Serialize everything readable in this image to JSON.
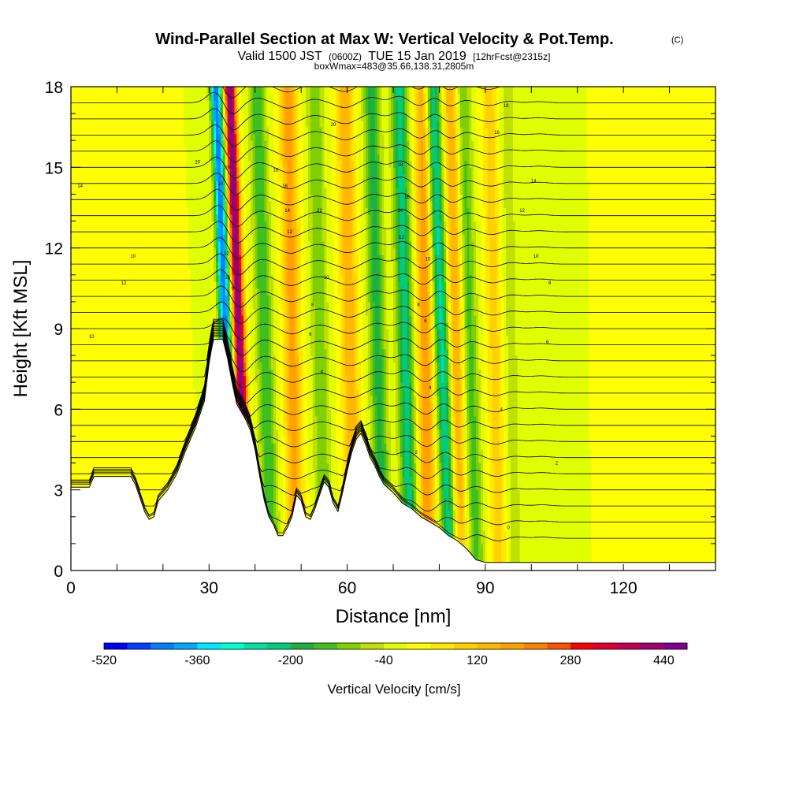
{
  "header": {
    "title": "Wind-Parallel Section at Max W: Vertical Velocity & Pot.Temp.",
    "title_unit": "(C)",
    "valid_prefix": "Valid 1500 JST",
    "valid_utc": "(0600Z)",
    "valid_date": "TUE 15 Jan 2019",
    "forecast": "[12hrFcst@2315z]",
    "box_info": "boxWmax=483@35.66,138.31,2805m"
  },
  "chart_data": {
    "type": "heatmap",
    "title": "Wind-Parallel Section at Max W: Vertical Velocity & Pot.Temp.",
    "xlabel": "Distance [nm]",
    "ylabel": "Height [Kft MSL]",
    "xlim": [
      0,
      140
    ],
    "ylim": [
      0,
      18
    ],
    "xticks": [
      0,
      30,
      60,
      90,
      120
    ],
    "xtick_labels": [
      "0",
      "30",
      "60",
      "90",
      "120"
    ],
    "yticks": [
      0,
      3,
      6,
      9,
      12,
      15,
      18
    ],
    "ytick_labels": [
      "0",
      "3",
      "6",
      "9",
      "12",
      "15",
      "18"
    ],
    "colorbar": {
      "label": "Vertical Velocity [cm/s]",
      "min": -520,
      "max": 480,
      "step": 40,
      "tick_values": [
        -520,
        -360,
        -200,
        -40,
        120,
        280,
        440
      ],
      "tick_labels": [
        "-520",
        "-360",
        "-200",
        "-40",
        "120",
        "280",
        "440"
      ],
      "colors": [
        "#0000ff",
        "#0040ff",
        "#0080ff",
        "#00a8ff",
        "#00e8ff",
        "#00ffd0",
        "#00e0a0",
        "#00cc80",
        "#20b040",
        "#40c020",
        "#80d000",
        "#c0e000",
        "#e0ff00",
        "#ffff00",
        "#ffe800",
        "#ffd000",
        "#ffb800",
        "#ffa000",
        "#ff8000",
        "#ff5000",
        "#ff0000",
        "#e00030",
        "#c00050",
        "#a00070",
        "#800090"
      ]
    },
    "terrain_kft": {
      "x": [
        0,
        4,
        5,
        13,
        14,
        16,
        17,
        18,
        19,
        21,
        23,
        25,
        27,
        29,
        30,
        30.5,
        31,
        33,
        34,
        35,
        36,
        37,
        38,
        39,
        40,
        41,
        42,
        43,
        44,
        45,
        46,
        47,
        48,
        49,
        50,
        51,
        52,
        53,
        54,
        55,
        56,
        57,
        58,
        59,
        60,
        61,
        62,
        63,
        64,
        65,
        66,
        67,
        68,
        70,
        72,
        74,
        76,
        78,
        80,
        82,
        84,
        86,
        87,
        88,
        90,
        92,
        95,
        100,
        110,
        120,
        130,
        137,
        140
      ],
      "y": [
        3.1,
        3.1,
        3.5,
        3.5,
        3.2,
        2.2,
        1.9,
        2.0,
        2.6,
        3.0,
        3.6,
        4.5,
        5.3,
        6.3,
        7.7,
        8.2,
        8.6,
        8.6,
        7.9,
        7.0,
        6.2,
        5.9,
        5.6,
        5.2,
        4.5,
        3.5,
        2.6,
        2.0,
        1.7,
        1.3,
        1.3,
        1.6,
        2.0,
        2.8,
        2.6,
        2.0,
        1.9,
        2.3,
        2.8,
        3.3,
        3.1,
        2.5,
        2.2,
        2.9,
        3.7,
        4.4,
        4.9,
        5.1,
        4.7,
        4.2,
        3.9,
        3.5,
        3.2,
        2.9,
        2.5,
        2.3,
        2.0,
        1.8,
        1.6,
        1.3,
        1.1,
        0.8,
        0.6,
        0.4,
        0.3,
        0.3,
        0.3,
        0.3,
        0.3,
        0.3,
        0.3,
        0.3,
        0.3
      ]
    },
    "vertical_velocity_bands": [
      {
        "x": 33.5,
        "w_cms": -440,
        "tilt": 0.22
      },
      {
        "x": 36.5,
        "w_cms": 460,
        "tilt": 0.22
      },
      {
        "x": 42.0,
        "w_cms": -160,
        "tilt": 0.18
      },
      {
        "x": 48.0,
        "w_cms": 180,
        "tilt": 0.1
      },
      {
        "x": 54.0,
        "w_cms": -120,
        "tilt": 0.12
      },
      {
        "x": 60.5,
        "w_cms": 160,
        "tilt": 0.12
      },
      {
        "x": 66.5,
        "w_cms": -180,
        "tilt": 0.14
      },
      {
        "x": 72.5,
        "w_cms": -220,
        "tilt": 0.14
      },
      {
        "x": 77.0,
        "w_cms": 200,
        "tilt": 0.06
      },
      {
        "x": 80.5,
        "w_cms": -260,
        "tilt": 0.24
      },
      {
        "x": 83.5,
        "w_cms": 180,
        "tilt": 0.1
      },
      {
        "x": 86.5,
        "w_cms": -140,
        "tilt": 0.18
      },
      {
        "x": 92.0,
        "w_cms": 100,
        "tilt": 0.12
      },
      {
        "x": 95.5,
        "w_cms": -60,
        "tilt": 0.1
      },
      {
        "x": 102.0,
        "w_cms": -40,
        "tilt": 0.05
      }
    ],
    "isentrope_labels": [
      {
        "x": 2,
        "y": 14.3,
        "text": "14"
      },
      {
        "x": 27.5,
        "y": 15.2,
        "text": "20"
      },
      {
        "x": 13.5,
        "y": 11.7,
        "text": "10"
      },
      {
        "x": 11.5,
        "y": 10.7,
        "text": "12"
      },
      {
        "x": 4.5,
        "y": 8.7,
        "text": "10"
      },
      {
        "x": 34,
        "y": 15.0,
        "text": "10"
      },
      {
        "x": 32.5,
        "y": 14.4,
        "text": "14"
      },
      {
        "x": 33.8,
        "y": 11.8,
        "text": "12"
      },
      {
        "x": 34.0,
        "y": 10.9,
        "text": "10"
      },
      {
        "x": 35.2,
        "y": 10.5,
        "text": "8"
      },
      {
        "x": 33.8,
        "y": 8.7,
        "text": "4"
      },
      {
        "x": 36.0,
        "y": 8.2,
        "text": "4"
      },
      {
        "x": 44.5,
        "y": 14.9,
        "text": "18"
      },
      {
        "x": 46.5,
        "y": 14.3,
        "text": "16"
      },
      {
        "x": 47.0,
        "y": 13.4,
        "text": "14"
      },
      {
        "x": 47.5,
        "y": 12.6,
        "text": "12"
      },
      {
        "x": 54.0,
        "y": 13.4,
        "text": "22"
      },
      {
        "x": 55.5,
        "y": 10.9,
        "text": "10"
      },
      {
        "x": 52.5,
        "y": 9.9,
        "text": "8"
      },
      {
        "x": 52.0,
        "y": 8.8,
        "text": "6"
      },
      {
        "x": 54.5,
        "y": 7.4,
        "text": "4"
      },
      {
        "x": 57.0,
        "y": 16.6,
        "text": "20"
      },
      {
        "x": 71.5,
        "y": 15.1,
        "text": "18"
      },
      {
        "x": 73.0,
        "y": 13.9,
        "text": "16"
      },
      {
        "x": 71.5,
        "y": 13.4,
        "text": "14"
      },
      {
        "x": 71.8,
        "y": 12.4,
        "text": "12"
      },
      {
        "x": 77.5,
        "y": 11.6,
        "text": "10"
      },
      {
        "x": 75.5,
        "y": 9.9,
        "text": "8"
      },
      {
        "x": 77.0,
        "y": 9.3,
        "text": "6"
      },
      {
        "x": 78.0,
        "y": 6.8,
        "text": "4"
      },
      {
        "x": 75.0,
        "y": 4.4,
        "text": "2"
      },
      {
        "x": 94.5,
        "y": 17.3,
        "text": "18"
      },
      {
        "x": 92.5,
        "y": 16.3,
        "text": "16"
      },
      {
        "x": 100.5,
        "y": 14.5,
        "text": "14"
      },
      {
        "x": 98.0,
        "y": 13.4,
        "text": "12"
      },
      {
        "x": 101.0,
        "y": 11.7,
        "text": "10"
      },
      {
        "x": 104.0,
        "y": 10.7,
        "text": "8"
      },
      {
        "x": 103.5,
        "y": 8.5,
        "text": "6"
      },
      {
        "x": 93.5,
        "y": 6.0,
        "text": "4"
      },
      {
        "x": 105.5,
        "y": 4.0,
        "text": "2"
      },
      {
        "x": 95.0,
        "y": 1.6,
        "text": "0"
      }
    ]
  }
}
